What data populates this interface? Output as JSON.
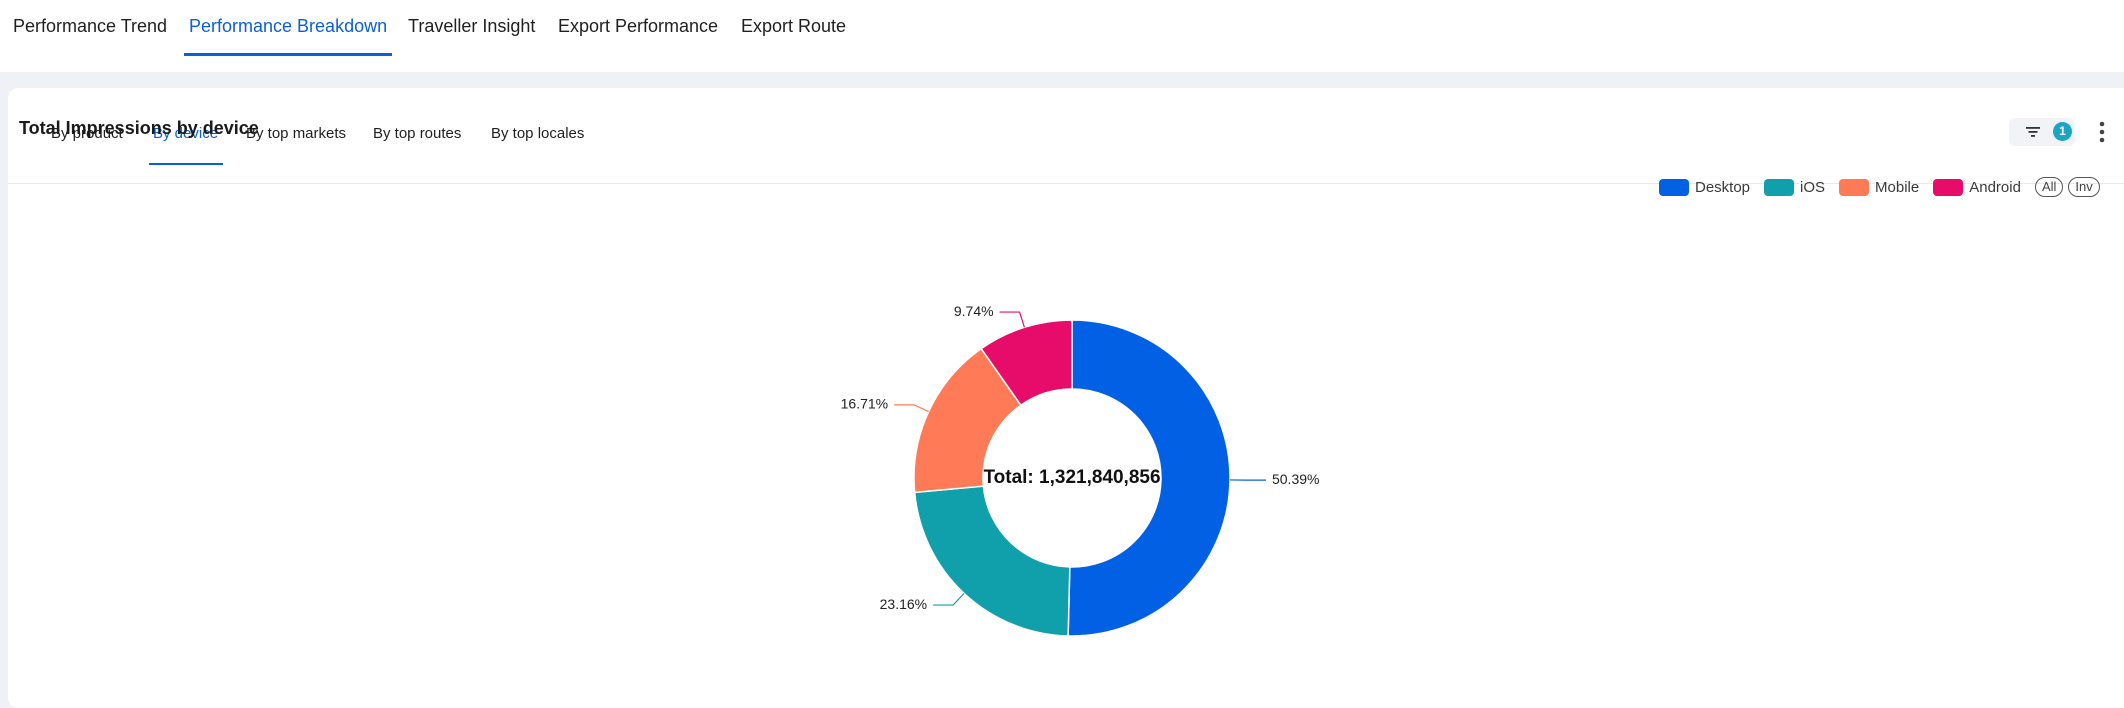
{
  "top_tabs": [
    {
      "label": "Performance Trend"
    },
    {
      "label": "Performance Breakdown"
    },
    {
      "label": "Traveller Insight"
    },
    {
      "label": "Export Performance"
    },
    {
      "label": "Export Route"
    }
  ],
  "top_tabs_active": "Performance Breakdown",
  "sub_tabs": [
    {
      "label": "By product"
    },
    {
      "label": "By device"
    },
    {
      "label": "By top markets"
    },
    {
      "label": "By top routes"
    },
    {
      "label": "By top locales"
    }
  ],
  "sub_tabs_active": "By device",
  "chart": {
    "title": "Total Impressions by device",
    "filter_count": "1"
  },
  "legend": {
    "items": [
      "Desktop",
      "iOS",
      "Mobile",
      "Android"
    ],
    "all_label": "All",
    "inv_label": "Inv"
  },
  "chart_data": {
    "type": "pie",
    "variant": "donut",
    "title": "Total Impressions by device",
    "center_label": "Total: 1,321,840,856",
    "categories": [
      "Desktop",
      "iOS",
      "Mobile",
      "Android"
    ],
    "values": [
      50.39,
      23.16,
      16.71,
      9.74
    ],
    "value_labels": [
      "50.39%",
      "23.16%",
      "16.71%",
      "9.74%"
    ],
    "colors": [
      "#0260e4",
      "#0fa0ab",
      "#ff7b57",
      "#e80c6a"
    ],
    "legend_position": "top-right"
  }
}
